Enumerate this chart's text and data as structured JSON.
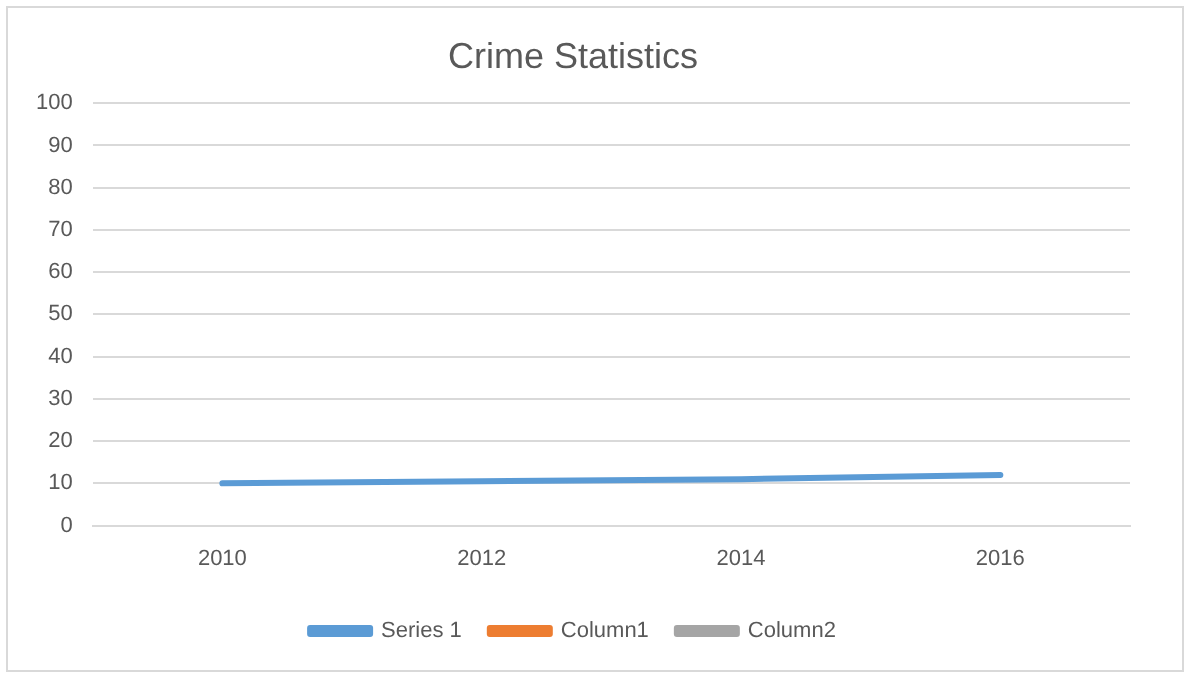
{
  "chart_data": {
    "type": "line",
    "title": "Crime Statistics",
    "categories": [
      "2010",
      "2012",
      "2014",
      "2016"
    ],
    "series": [
      {
        "name": "Series 1",
        "color": "#5b9bd5",
        "values": [
          10,
          10.5,
          11,
          12
        ]
      },
      {
        "name": "Column1",
        "color": "#ed7d31",
        "values": [
          null,
          null,
          null,
          null
        ]
      },
      {
        "name": "Column2",
        "color": "#a5a5a5",
        "values": [
          null,
          null,
          null,
          null
        ]
      }
    ],
    "ylim": [
      0,
      100
    ],
    "yticks": [
      0,
      10,
      20,
      30,
      40,
      50,
      60,
      70,
      80,
      90,
      100
    ],
    "grid": "y",
    "legend": "bottom",
    "marker": "none",
    "line_style": "solid"
  }
}
